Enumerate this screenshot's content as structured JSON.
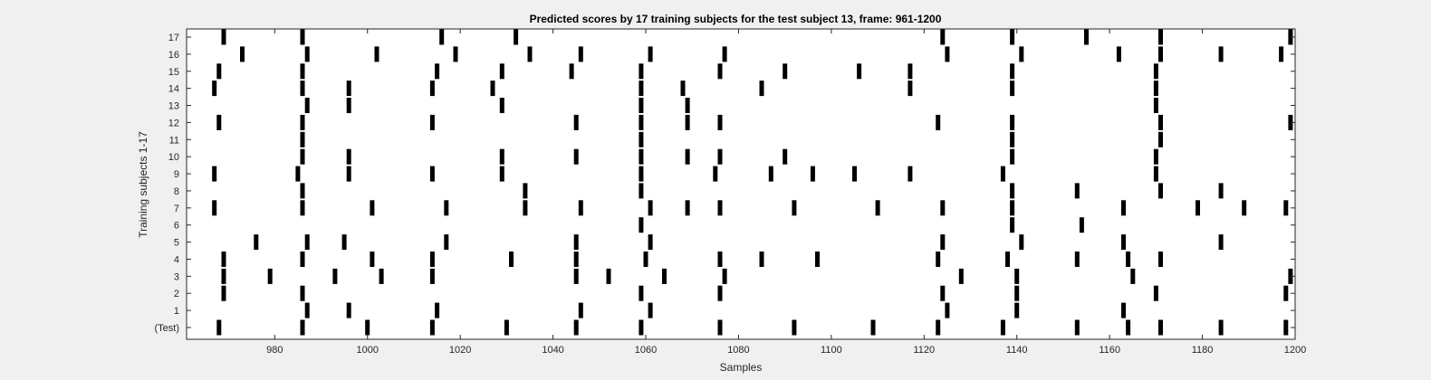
{
  "chart_data": {
    "type": "scatter",
    "title": "Predicted scores by 17 training subjects for the test subject 13, frame: 961-1200",
    "xlabel": "Samples",
    "ylabel": "Training subjects 1-17",
    "xlim": [
      961,
      1200
    ],
    "xticks": [
      980,
      1000,
      1020,
      1040,
      1060,
      1080,
      1100,
      1120,
      1140,
      1160,
      1180,
      1200
    ],
    "rows": [
      "(Test)",
      "1",
      "2",
      "3",
      "4",
      "5",
      "6",
      "7",
      "8",
      "9",
      "10",
      "11",
      "12",
      "13",
      "14",
      "15",
      "16",
      "17"
    ],
    "series": [
      {
        "row": "(Test)",
        "x": [
          968,
          986,
          1000,
          1014,
          1030,
          1045,
          1059,
          1076,
          1092,
          1109,
          1123,
          1137,
          1153,
          1164,
          1171,
          1184,
          1198
        ]
      },
      {
        "row": "1",
        "x": [
          987,
          996,
          1015,
          1046,
          1061,
          1125,
          1140,
          1163
        ]
      },
      {
        "row": "2",
        "x": [
          969,
          986,
          1059,
          1076,
          1124,
          1140,
          1170,
          1198
        ]
      },
      {
        "row": "3",
        "x": [
          969,
          979,
          993,
          1003,
          1014,
          1045,
          1052,
          1064,
          1077,
          1128,
          1140,
          1165,
          1199
        ]
      },
      {
        "row": "4",
        "x": [
          969,
          986,
          1001,
          1014,
          1031,
          1045,
          1060,
          1076,
          1085,
          1097,
          1123,
          1138,
          1153,
          1164,
          1171
        ]
      },
      {
        "row": "5",
        "x": [
          976,
          987,
          995,
          1017,
          1045,
          1061,
          1124,
          1141,
          1163,
          1184
        ]
      },
      {
        "row": "6",
        "x": [
          1059,
          1139,
          1154
        ]
      },
      {
        "row": "7",
        "x": [
          967,
          986,
          1001,
          1017,
          1034,
          1046,
          1061,
          1069,
          1076,
          1092,
          1110,
          1124,
          1139,
          1163,
          1179,
          1189,
          1198
        ]
      },
      {
        "row": "8",
        "x": [
          986,
          1034,
          1059,
          1139,
          1153,
          1171,
          1184
        ]
      },
      {
        "row": "9",
        "x": [
          967,
          985,
          996,
          1014,
          1029,
          1059,
          1075,
          1087,
          1096,
          1105,
          1117,
          1137,
          1170
        ]
      },
      {
        "row": "10",
        "x": [
          986,
          996,
          1029,
          1045,
          1059,
          1069,
          1076,
          1090,
          1139,
          1170
        ]
      },
      {
        "row": "11",
        "x": [
          986,
          1059,
          1139,
          1171
        ]
      },
      {
        "row": "12",
        "x": [
          968,
          986,
          1014,
          1045,
          1059,
          1069,
          1076,
          1123,
          1139,
          1171,
          1199
        ]
      },
      {
        "row": "13",
        "x": [
          987,
          996,
          1029,
          1059,
          1069,
          1170
        ]
      },
      {
        "row": "14",
        "x": [
          967,
          986,
          996,
          1014,
          1027,
          1059,
          1068,
          1085,
          1117,
          1139,
          1170
        ]
      },
      {
        "row": "15",
        "x": [
          968,
          986,
          1015,
          1029,
          1044,
          1059,
          1076,
          1090,
          1106,
          1117,
          1139,
          1170
        ]
      },
      {
        "row": "16",
        "x": [
          973,
          987,
          1002,
          1019,
          1035,
          1046,
          1061,
          1077,
          1125,
          1141,
          1162,
          1171,
          1184,
          1197
        ]
      },
      {
        "row": "17",
        "x": [
          969,
          986,
          1016,
          1032,
          1124,
          1139,
          1155,
          1171,
          1199
        ]
      }
    ],
    "grid": false,
    "legend": "none",
    "mark_color": "#000000",
    "background": "#ffffff"
  }
}
